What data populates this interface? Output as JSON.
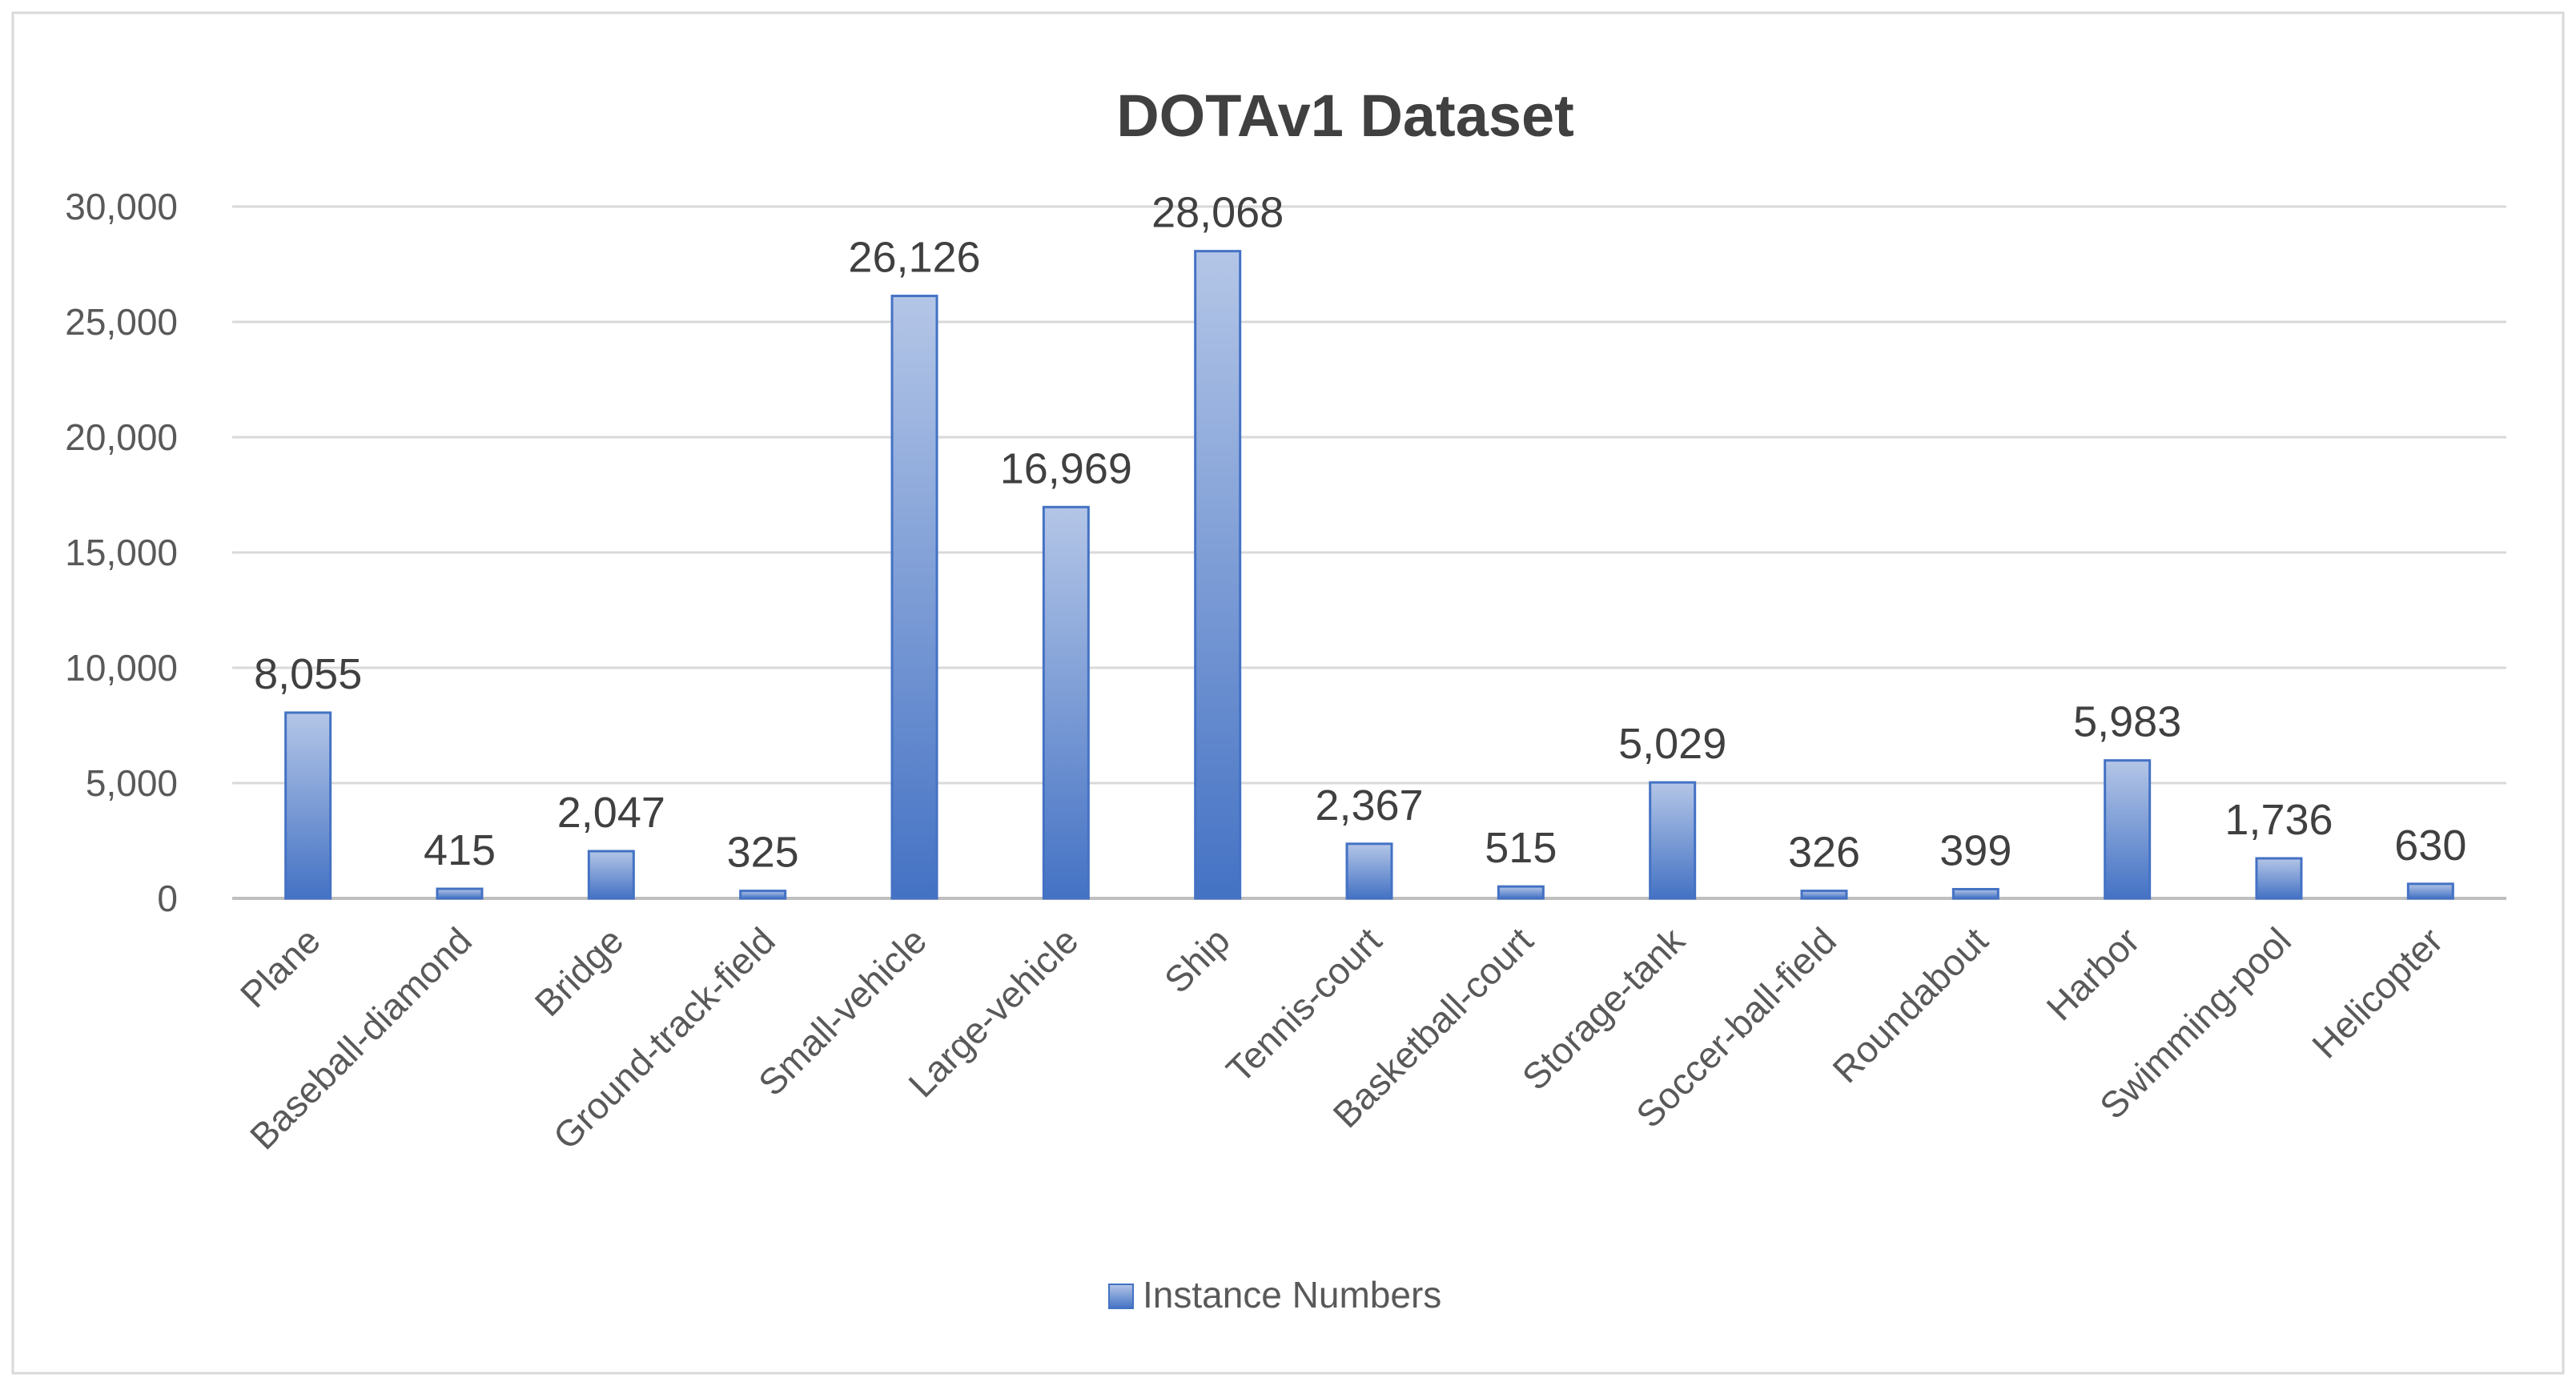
{
  "chart_data": {
    "type": "bar",
    "title": "DOTAv1 Dataset",
    "xlabel": "",
    "ylabel": "",
    "ylim": [
      0,
      30000
    ],
    "yticks": [
      0,
      5000,
      10000,
      15000,
      20000,
      25000,
      30000
    ],
    "ytick_labels": [
      "0",
      "5,000",
      "10,000",
      "15,000",
      "20,000",
      "25,000",
      "30,000"
    ],
    "grid": true,
    "legend_position": "bottom",
    "categories": [
      "Plane",
      "Baseball-diamond",
      "Bridge",
      "Ground-track-field",
      "Small-vehicle",
      "Large-vehicle",
      "Ship",
      "Tennis-court",
      "Basketball-court",
      "Storage-tank",
      "Soccer-ball-field",
      "Roundabout",
      "Harbor",
      "Swimming-pool",
      "Helicopter"
    ],
    "series": [
      {
        "name": "Instance Numbers",
        "values": [
          8055,
          415,
          2047,
          325,
          26126,
          16969,
          28068,
          2367,
          515,
          5029,
          326,
          399,
          5983,
          1736,
          630
        ],
        "data_labels": [
          "8,055",
          "415",
          "2,047",
          "325",
          "26,126",
          "16,969",
          "28,068",
          "2,367",
          "515",
          "5,029",
          "326",
          "399",
          "5,983",
          "1,736",
          "630"
        ]
      }
    ],
    "colors": {
      "bar_light": "#b4c6e7",
      "bar_dark": "#4472c4",
      "bar_stroke": "#4472c4",
      "grid": "#d9d9d9",
      "axis": "#bfbfbf",
      "border": "#d9d9d9"
    }
  }
}
